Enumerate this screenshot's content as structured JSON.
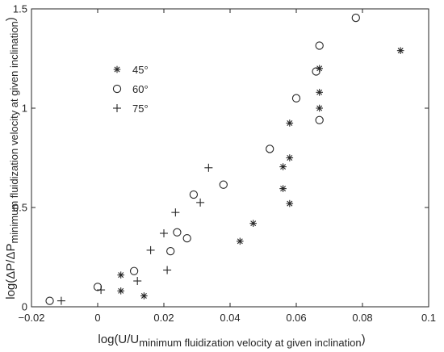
{
  "chart_data": {
    "type": "scatter",
    "xlabel": {
      "main": "log(U/U",
      "subscript": "minimum fluidization velocity at given inclination",
      "close": ")"
    },
    "ylabel": {
      "main": "log(ΔP/ΔP",
      "subscript": "minimum fluidization velocity at given inclination",
      "close": ")"
    },
    "xlim": [
      -0.02,
      0.1
    ],
    "ylim": [
      0,
      1.5
    ],
    "xticks": [
      -0.02,
      0,
      0.02,
      0.04,
      0.06,
      0.08,
      0.1
    ],
    "xtick_labels": [
      "−0.02",
      "0",
      "0.02",
      "0.04",
      "0.06",
      "0.08",
      "0.1"
    ],
    "yticks": [
      0,
      0.5,
      1,
      1.5
    ],
    "ytick_labels": [
      "0",
      "0.5",
      "1",
      "1.5"
    ],
    "grid": false,
    "legend_position": "upper-left",
    "series": [
      {
        "name": "45°",
        "marker": "asterisk",
        "points": [
          [
            0.007,
            0.16
          ],
          [
            0.007,
            0.08
          ],
          [
            0.014,
            0.055
          ],
          [
            0.043,
            0.33
          ],
          [
            0.047,
            0.42
          ],
          [
            0.056,
            0.595
          ],
          [
            0.058,
            0.52
          ],
          [
            0.056,
            0.705
          ],
          [
            0.058,
            0.75
          ],
          [
            0.058,
            0.925
          ],
          [
            0.067,
            1.08
          ],
          [
            0.067,
            1.2
          ],
          [
            0.067,
            1.0
          ],
          [
            0.0915,
            1.29
          ]
        ]
      },
      {
        "name": "60°",
        "marker": "circle",
        "points": [
          [
            -0.0145,
            0.03
          ],
          [
            0.0,
            0.1
          ],
          [
            0.011,
            0.18
          ],
          [
            0.022,
            0.28
          ],
          [
            0.024,
            0.375
          ],
          [
            0.027,
            0.345
          ],
          [
            0.029,
            0.565
          ],
          [
            0.038,
            0.615
          ],
          [
            0.052,
            0.795
          ],
          [
            0.06,
            1.05
          ],
          [
            0.066,
            1.185
          ],
          [
            0.067,
            0.94
          ],
          [
            0.067,
            1.315
          ],
          [
            0.078,
            1.455
          ]
        ]
      },
      {
        "name": "75°",
        "marker": "plus",
        "points": [
          [
            -0.011,
            0.03
          ],
          [
            0.001,
            0.085
          ],
          [
            0.012,
            0.13
          ],
          [
            0.016,
            0.285
          ],
          [
            0.02,
            0.37
          ],
          [
            0.021,
            0.185
          ],
          [
            0.0235,
            0.475
          ],
          [
            0.031,
            0.525
          ],
          [
            0.0335,
            0.7
          ]
        ]
      }
    ]
  }
}
